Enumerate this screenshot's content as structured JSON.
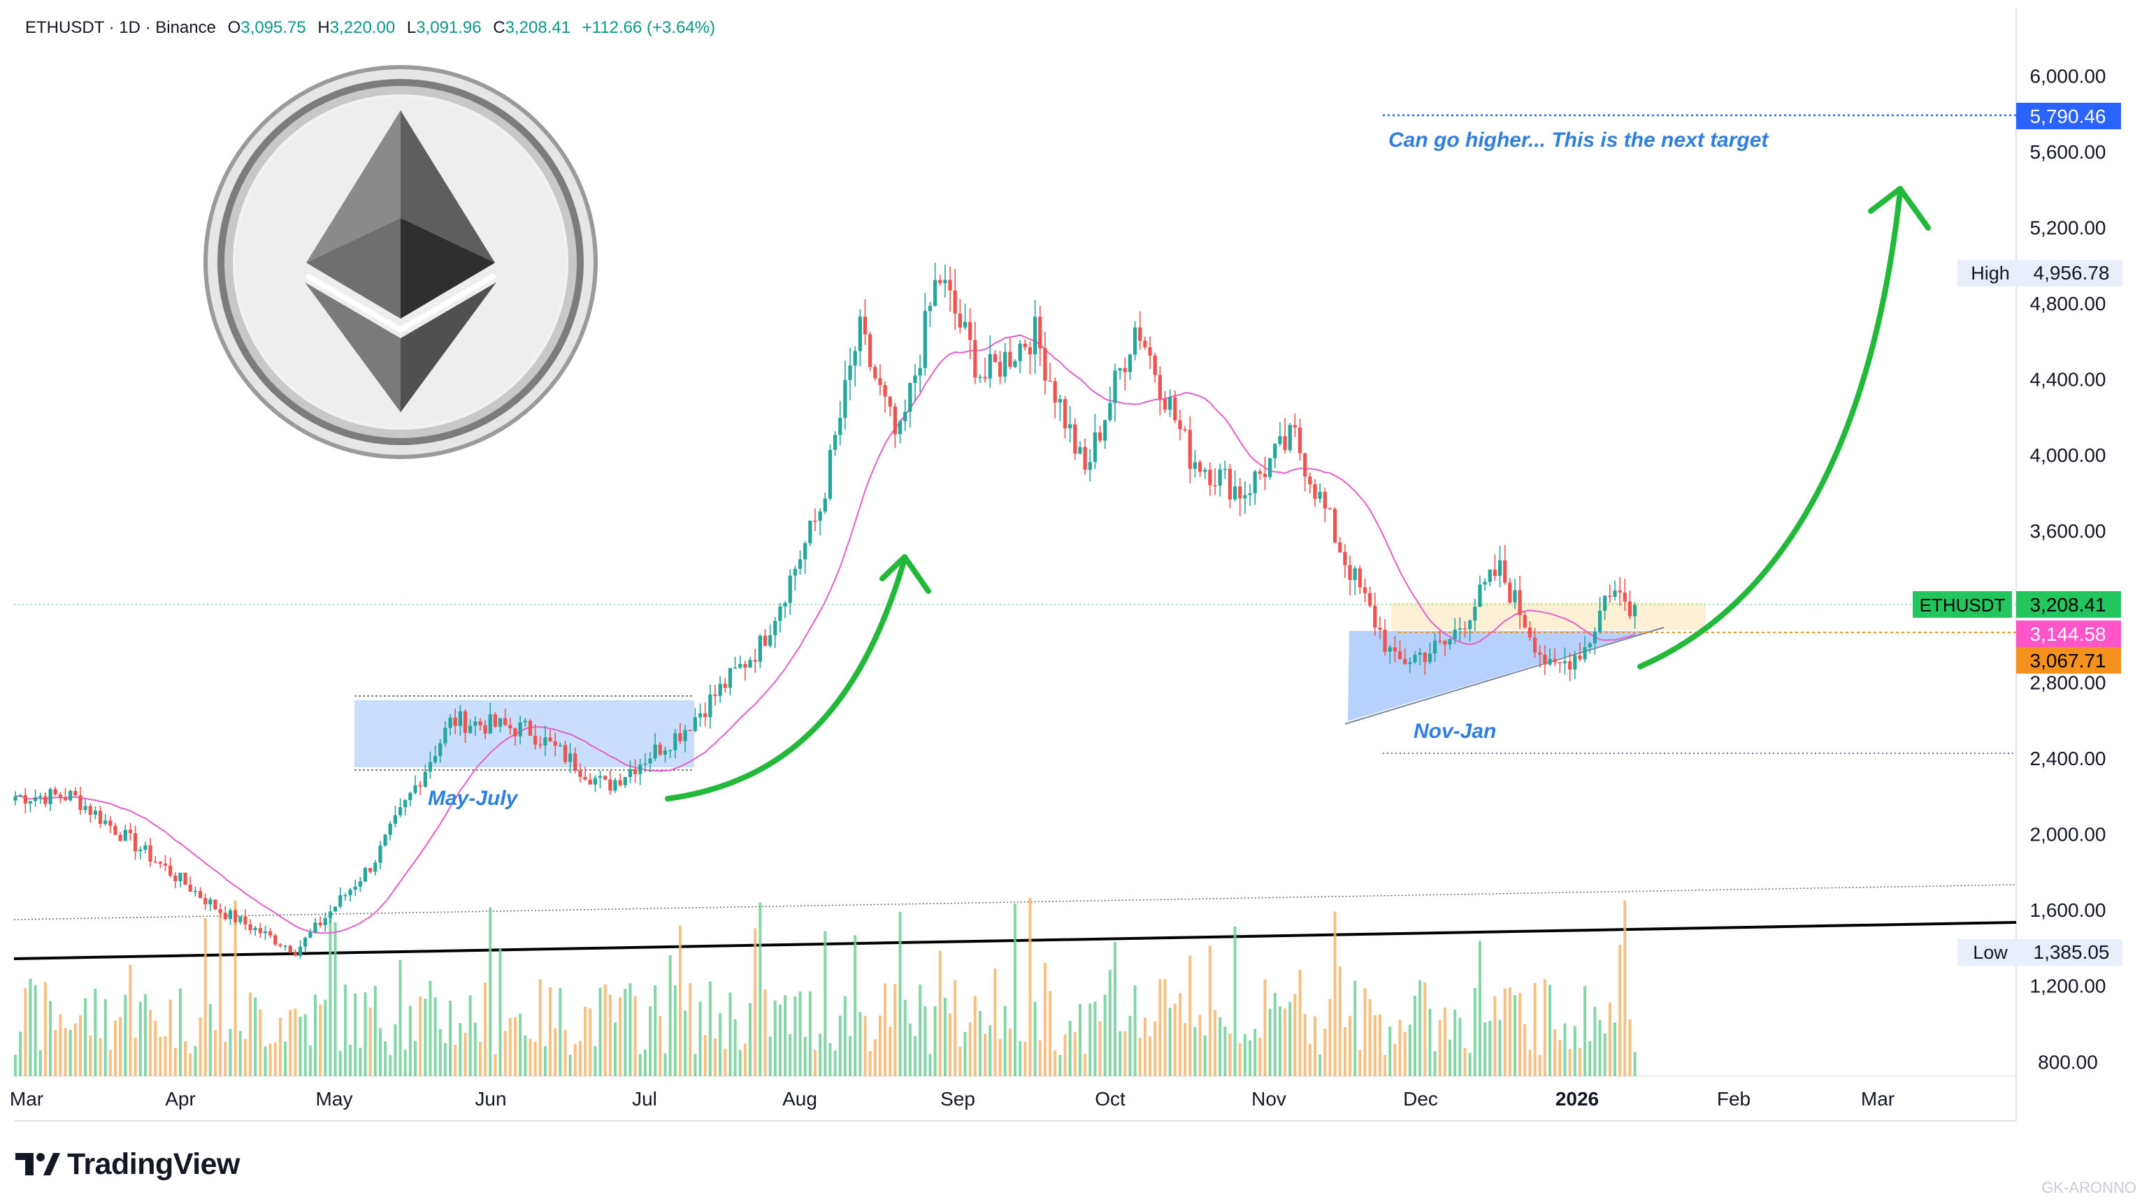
{
  "header": {
    "symbol": "ETHUSDT · 1D · Binance",
    "open_label": "O",
    "open": "3,095.75",
    "high_label": "H",
    "high": "3,220.00",
    "low_label": "L",
    "low": "3,091.96",
    "close_label": "C",
    "close": "3,208.41",
    "change": "+112.66 (+3.64%)"
  },
  "branding": {
    "logo_text": "TradingView",
    "watermark": "GK-ARONNO"
  },
  "colors": {
    "up": "#26a69a",
    "down": "#ef5350",
    "ma": "#e65fc8",
    "arrow": "#22b83a",
    "annotation_text": "#2f7fe0",
    "price_label_green": "#22c55e",
    "price_label_pink": "#ff55c8",
    "price_label_orange": "#f5921e",
    "target_label": "#2962ff"
  },
  "chart_data": {
    "type": "candlestick",
    "x_axis_labels": [
      "Mar",
      "Apr",
      "May",
      "Jun",
      "Jul",
      "Aug",
      "Sep",
      "Oct",
      "Nov",
      "Dec",
      "2026",
      "Feb",
      "Mar"
    ],
    "y_axis_ticks": [
      "6,000.00",
      "5,600.00",
      "5,200.00",
      "4,800.00",
      "4,400.00",
      "4,000.00",
      "3,600.00",
      "2,800.00",
      "2,400.00",
      "2,000.00",
      "1,600.00",
      "1,200.00",
      "800.00"
    ],
    "y_tick_values": [
      6000,
      5600,
      5200,
      4800,
      4400,
      4000,
      3600,
      2800,
      2400,
      2000,
      1600,
      1200,
      800
    ],
    "ylim": [
      720,
      6350
    ],
    "scale": "linear",
    "price_labels": {
      "target": "5,790.46",
      "high_tag": "High",
      "high": "4,956.78",
      "symbol_tag": "ETHUSDT",
      "last": "3,208.41",
      "ma_value": "3,144.58",
      "support": "3,067.71",
      "low_tag": "Low",
      "low": "1,385.05"
    },
    "price_label_values": {
      "target": 5790.46,
      "high": 4956.78,
      "last": 3208.41,
      "ma_value": 3144.58,
      "support": 3067.71,
      "low": 1385.05
    },
    "annotations": {
      "target_text": "Can go higher... This is the next target",
      "range_1": "May-July",
      "range_2": "Nov-Jan"
    },
    "key_points": [
      {
        "x": "Mar",
        "y": 2200
      },
      {
        "x": "Apr",
        "y": 1600
      },
      {
        "x": "Apr",
        "y": 1385
      },
      {
        "x": "May",
        "y": 1850
      },
      {
        "x": "May",
        "y": 2600
      },
      {
        "x": "Jun",
        "y": 2550
      },
      {
        "x": "Jun",
        "y": 2250
      },
      {
        "x": "Jul",
        "y": 2550
      },
      {
        "x": "Jul",
        "y": 3000
      },
      {
        "x": "Aug",
        "y": 3700
      },
      {
        "x": "Aug",
        "y": 4650
      },
      {
        "x": "Aug",
        "y": 4050
      },
      {
        "x": "Aug",
        "y": 4956
      },
      {
        "x": "Sep",
        "y": 4400
      },
      {
        "x": "Sep",
        "y": 4650
      },
      {
        "x": "Sep",
        "y": 3900
      },
      {
        "x": "Oct",
        "y": 4700
      },
      {
        "x": "Oct",
        "y": 4000
      },
      {
        "x": "Oct",
        "y": 3800
      },
      {
        "x": "Nov",
        "y": 4100
      },
      {
        "x": "Nov",
        "y": 3450
      },
      {
        "x": "Nov",
        "y": 2900
      },
      {
        "x": "Dec",
        "y": 3000
      },
      {
        "x": "Dec",
        "y": 3400
      },
      {
        "x": "Dec",
        "y": 2850
      },
      {
        "x": "2026",
        "y": 3000
      },
      {
        "x": "2026",
        "y": 3300
      },
      {
        "x": "2026",
        "y": 3208
      }
    ]
  }
}
